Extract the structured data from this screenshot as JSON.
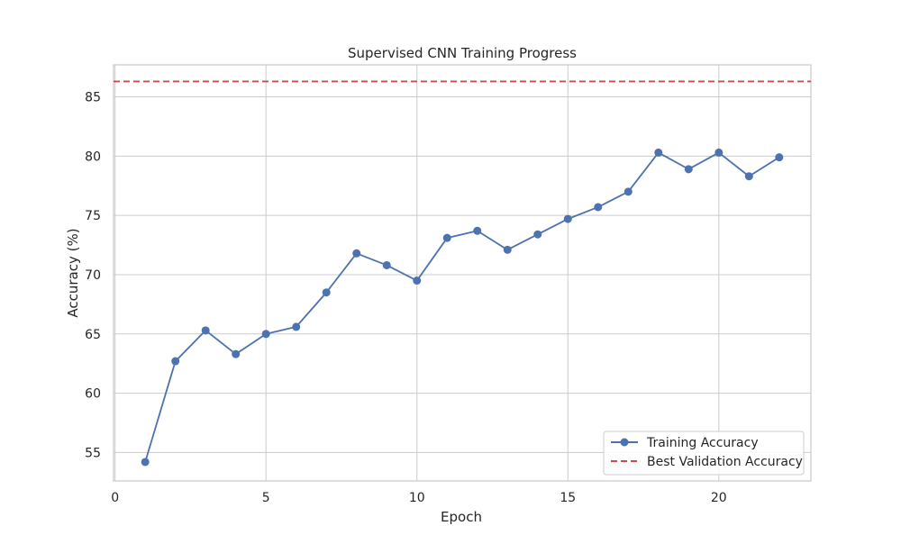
{
  "chart_data": {
    "type": "line",
    "title": "Supervised CNN Training Progress",
    "xlabel": "Epoch",
    "ylabel": "Accuracy (%)",
    "xlim": [
      -0.05,
      23.05
    ],
    "ylim": [
      52.6,
      87.7
    ],
    "xticks": [
      0,
      5,
      10,
      15,
      20
    ],
    "yticks": [
      55,
      60,
      65,
      70,
      75,
      80,
      85
    ],
    "grid": true,
    "legend_position": "lower-right",
    "series": [
      {
        "name": "Training Accuracy",
        "style": "line-with-markers",
        "color": "#4c72b0",
        "x": [
          1,
          2,
          3,
          4,
          5,
          6,
          7,
          8,
          9,
          10,
          11,
          12,
          13,
          14,
          15,
          16,
          17,
          18,
          19,
          20,
          21,
          22
        ],
        "y": [
          54.2,
          62.7,
          65.3,
          63.3,
          65.0,
          65.6,
          68.5,
          71.8,
          70.8,
          69.5,
          73.1,
          73.7,
          72.1,
          73.4,
          74.7,
          75.7,
          77.0,
          80.3,
          78.9,
          80.3,
          78.3,
          79.9
        ]
      },
      {
        "name": "Best Validation Accuracy",
        "style": "dashed-horizontal",
        "color": "#c44e52",
        "y": 86.3
      }
    ]
  }
}
